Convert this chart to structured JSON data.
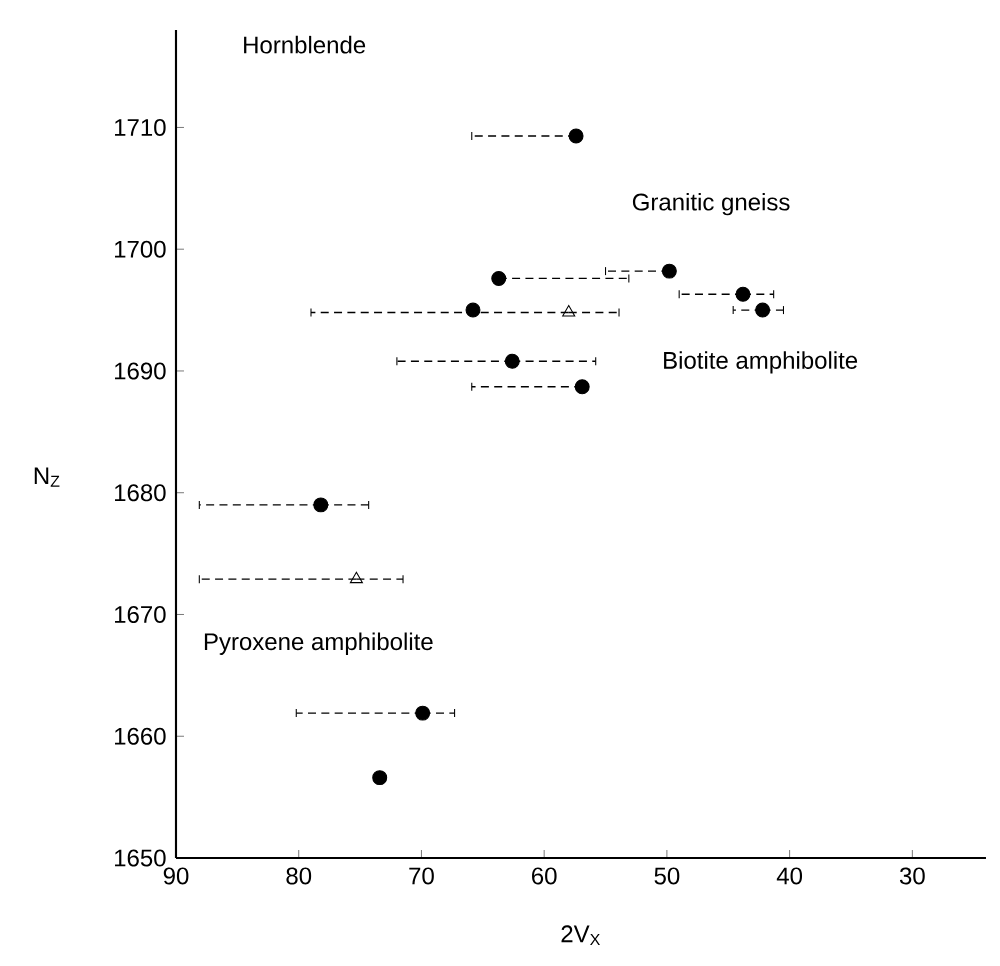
{
  "chart_data": {
    "type": "scatter",
    "title": "Hornblende",
    "xlabel": "2V$_{X}$",
    "ylabel": "N$_{Z}$",
    "xlim": [
      90,
      24
    ],
    "ylim": [
      1650,
      1718
    ],
    "xticks": [
      90,
      80,
      70,
      60,
      50,
      40,
      30
    ],
    "yticks": [
      1650,
      1660,
      1670,
      1680,
      1690,
      1700,
      1710
    ],
    "series": [
      {
        "name": "Granitic gneiss",
        "color": "#000000",
        "marker": "circle",
        "x": [
          57.4,
          49.8,
          62.6
        ],
        "values": [
          1709.3,
          1698.2,
          1690.8
        ],
        "xerrors": [
          [
            57.4,
            65.9
          ],
          [
            49.8,
            55.0
          ],
          [
            55.8,
            72.0
          ]
        ]
      },
      {
        "name": "Biotite amphibolite",
        "color": "#000000",
        "marker": "circle",
        "x": [
          63.7,
          65.8,
          43.8,
          42.2,
          56.9
        ],
        "values": [
          1697.6,
          1695.0,
          1696.3,
          1695.0,
          1688.7
        ],
        "xerrors": [
          [
            53.1,
            63.7
          ],
          null,
          [
            41.3,
            49.0
          ],
          [
            40.5,
            44.6
          ],
          [
            56.9,
            65.9
          ]
        ]
      },
      {
        "name": "Pyroxene amphibolite",
        "color": "#000000",
        "marker": "circle",
        "x": [
          78.2,
          69.9,
          73.4
        ],
        "values": [
          1679.0,
          1661.9,
          1656.6
        ],
        "xerrors": [
          [
            74.3,
            88.1
          ],
          [
            67.3,
            80.2
          ],
          null
        ]
      },
      {
        "color": "#000000",
        "marker": "triangle",
        "x": [
          58.0,
          75.3
        ],
        "values": [
          1694.8,
          1672.9
        ],
        "xerrors": [
          [
            53.9,
            79.0
          ],
          [
            71.5,
            88.1
          ]
        ]
      }
    ]
  }
}
